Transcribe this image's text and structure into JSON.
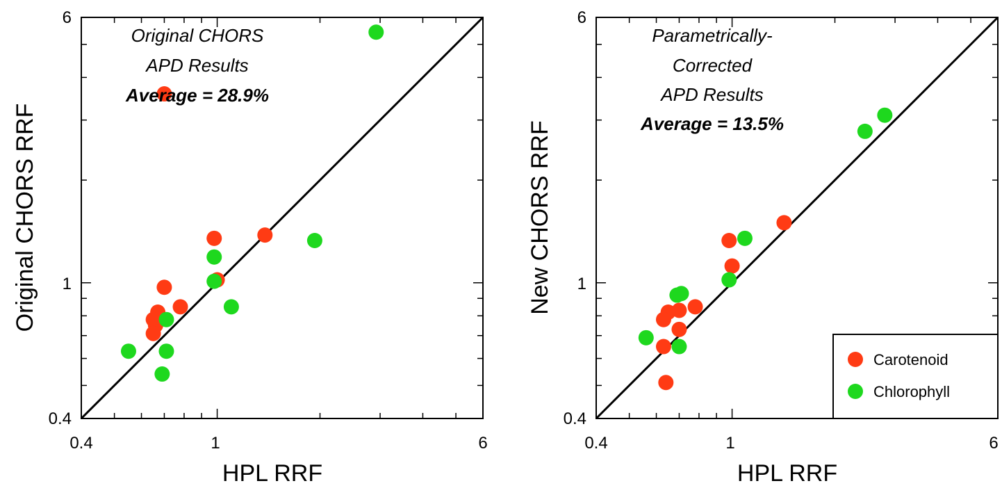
{
  "colors": {
    "carotenoid": "#ff3b14",
    "chlorophyll": "#1ed81e",
    "axis": "#000000"
  },
  "chart_data": [
    {
      "type": "scatter",
      "xscale": "log",
      "yscale": "log",
      "xlim": [
        0.4,
        6
      ],
      "ylim": [
        0.4,
        6
      ],
      "xticks": [
        "0.4",
        "1",
        "6"
      ],
      "yticks": [
        "0.4",
        "1",
        "6"
      ],
      "xlabel": "HPL RRF",
      "ylabel": "Original CHORS RRF",
      "identity_line": true,
      "annotation": [
        "Original CHORS",
        "APD Results"
      ],
      "annotation_bold": "Average = 28.9%",
      "series": [
        {
          "name": "Carotenoid",
          "color": "#ff3b14",
          "points": [
            [
              0.7,
              3.58
            ],
            [
              0.98,
              1.35
            ],
            [
              1.38,
              1.38
            ],
            [
              1.0,
              1.02
            ],
            [
              0.7,
              0.97
            ],
            [
              0.78,
              0.85
            ],
            [
              0.67,
              0.82
            ],
            [
              0.65,
              0.78
            ],
            [
              0.66,
              0.75
            ],
            [
              0.65,
              0.71
            ]
          ]
        },
        {
          "name": "Chlorophyll",
          "color": "#1ed81e",
          "points": [
            [
              2.92,
              5.43
            ],
            [
              1.93,
              1.33
            ],
            [
              0.98,
              1.19
            ],
            [
              0.98,
              1.01
            ],
            [
              1.1,
              0.85
            ],
            [
              0.71,
              0.78
            ],
            [
              0.71,
              0.63
            ],
            [
              0.55,
              0.63
            ],
            [
              0.69,
              0.54
            ]
          ]
        }
      ]
    },
    {
      "type": "scatter",
      "xscale": "log",
      "yscale": "log",
      "xlim": [
        0.4,
        6
      ],
      "ylim": [
        0.4,
        6
      ],
      "xticks": [
        "0.4",
        "1",
        "6"
      ],
      "yticks": [
        "0.4",
        "1",
        "6"
      ],
      "xlabel": "HPL RRF",
      "ylabel": "New CHORS RRF",
      "identity_line": true,
      "annotation": [
        "Parametrically-",
        "Corrected",
        "APD Results"
      ],
      "annotation_bold": "Average = 13.5%",
      "legend": "bottom-right",
      "series": [
        {
          "name": "Carotenoid",
          "color": "#ff3b14",
          "points": [
            [
              1.42,
              1.5
            ],
            [
              0.98,
              1.33
            ],
            [
              1.0,
              1.12
            ],
            [
              0.78,
              0.85
            ],
            [
              0.7,
              0.83
            ],
            [
              0.65,
              0.82
            ],
            [
              0.63,
              0.78
            ],
            [
              0.7,
              0.73
            ],
            [
              0.63,
              0.65
            ],
            [
              0.64,
              0.51
            ]
          ]
        },
        {
          "name": "Chlorophyll",
          "color": "#1ed81e",
          "points": [
            [
              2.8,
              3.1
            ],
            [
              2.45,
              2.78
            ],
            [
              1.09,
              1.35
            ],
            [
              0.98,
              1.02
            ],
            [
              0.71,
              0.93
            ],
            [
              0.69,
              0.92
            ],
            [
              0.56,
              0.69
            ],
            [
              0.7,
              0.65
            ]
          ]
        }
      ]
    }
  ]
}
